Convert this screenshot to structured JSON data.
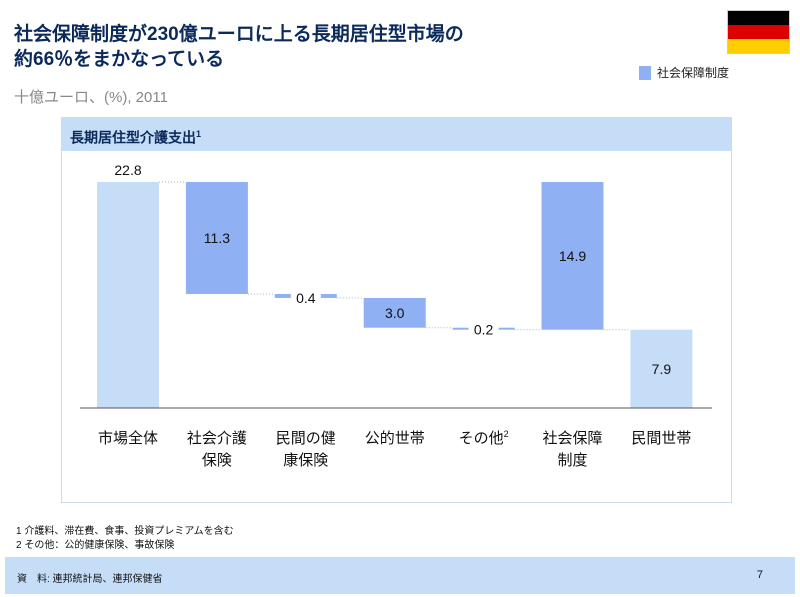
{
  "header": {
    "title_line1": "社会保障制度が230億ユーロに上る長期居住型市場の",
    "title_line2": "約66％をまかなっている",
    "subtitle": "十億ユーロ、(%), 2011"
  },
  "flag": {
    "name": "germany-flag",
    "colors": [
      "#000000",
      "#dd0000",
      "#ffce00"
    ]
  },
  "legend": {
    "label": "社会保障制度",
    "color": "#8fb0f2"
  },
  "panel": {
    "title": "長期居住型介護支出",
    "title_sup": "1"
  },
  "chart_data": {
    "type": "waterfall",
    "title": "長期居住型介護支出",
    "categories": [
      {
        "label": [
          "市場全体"
        ],
        "sup": ""
      },
      {
        "label": [
          "社会介護",
          "保険"
        ],
        "sup": ""
      },
      {
        "label": [
          "民間の健",
          "康保険"
        ],
        "sup": ""
      },
      {
        "label": [
          "公的世帯"
        ],
        "sup": ""
      },
      {
        "label": [
          "その他"
        ],
        "sup": "2"
      },
      {
        "label": [
          "社会保障",
          "制度"
        ],
        "sup": ""
      },
      {
        "label": [
          "民間世帯"
        ],
        "sup": ""
      }
    ],
    "values": [
      22.8,
      11.3,
      0.4,
      3.0,
      0.2,
      14.9,
      7.9
    ],
    "value_labels": [
      "22.8",
      "11.3",
      "0.4",
      "3.0",
      "0.2",
      "14.9",
      "7.9"
    ],
    "bar_kind": [
      "total",
      "step",
      "step",
      "step",
      "step",
      "subtotal-top",
      "total"
    ],
    "colors": [
      "#c6ddf7",
      "#8fb0f2",
      "#8fb0f2",
      "#8fb0f2",
      "#8fb0f2",
      "#8fb0f2",
      "#c6ddf7"
    ],
    "ylim": [
      0,
      22.8
    ],
    "grid": false
  },
  "notes": [
    "1 介護料、滞在費、食事、投資プレミアムを含む",
    "2 その他：公的健康保険、事故保険"
  ],
  "footer": {
    "source": "資　料: 連邦統計局、連邦保健省",
    "page": "7"
  }
}
